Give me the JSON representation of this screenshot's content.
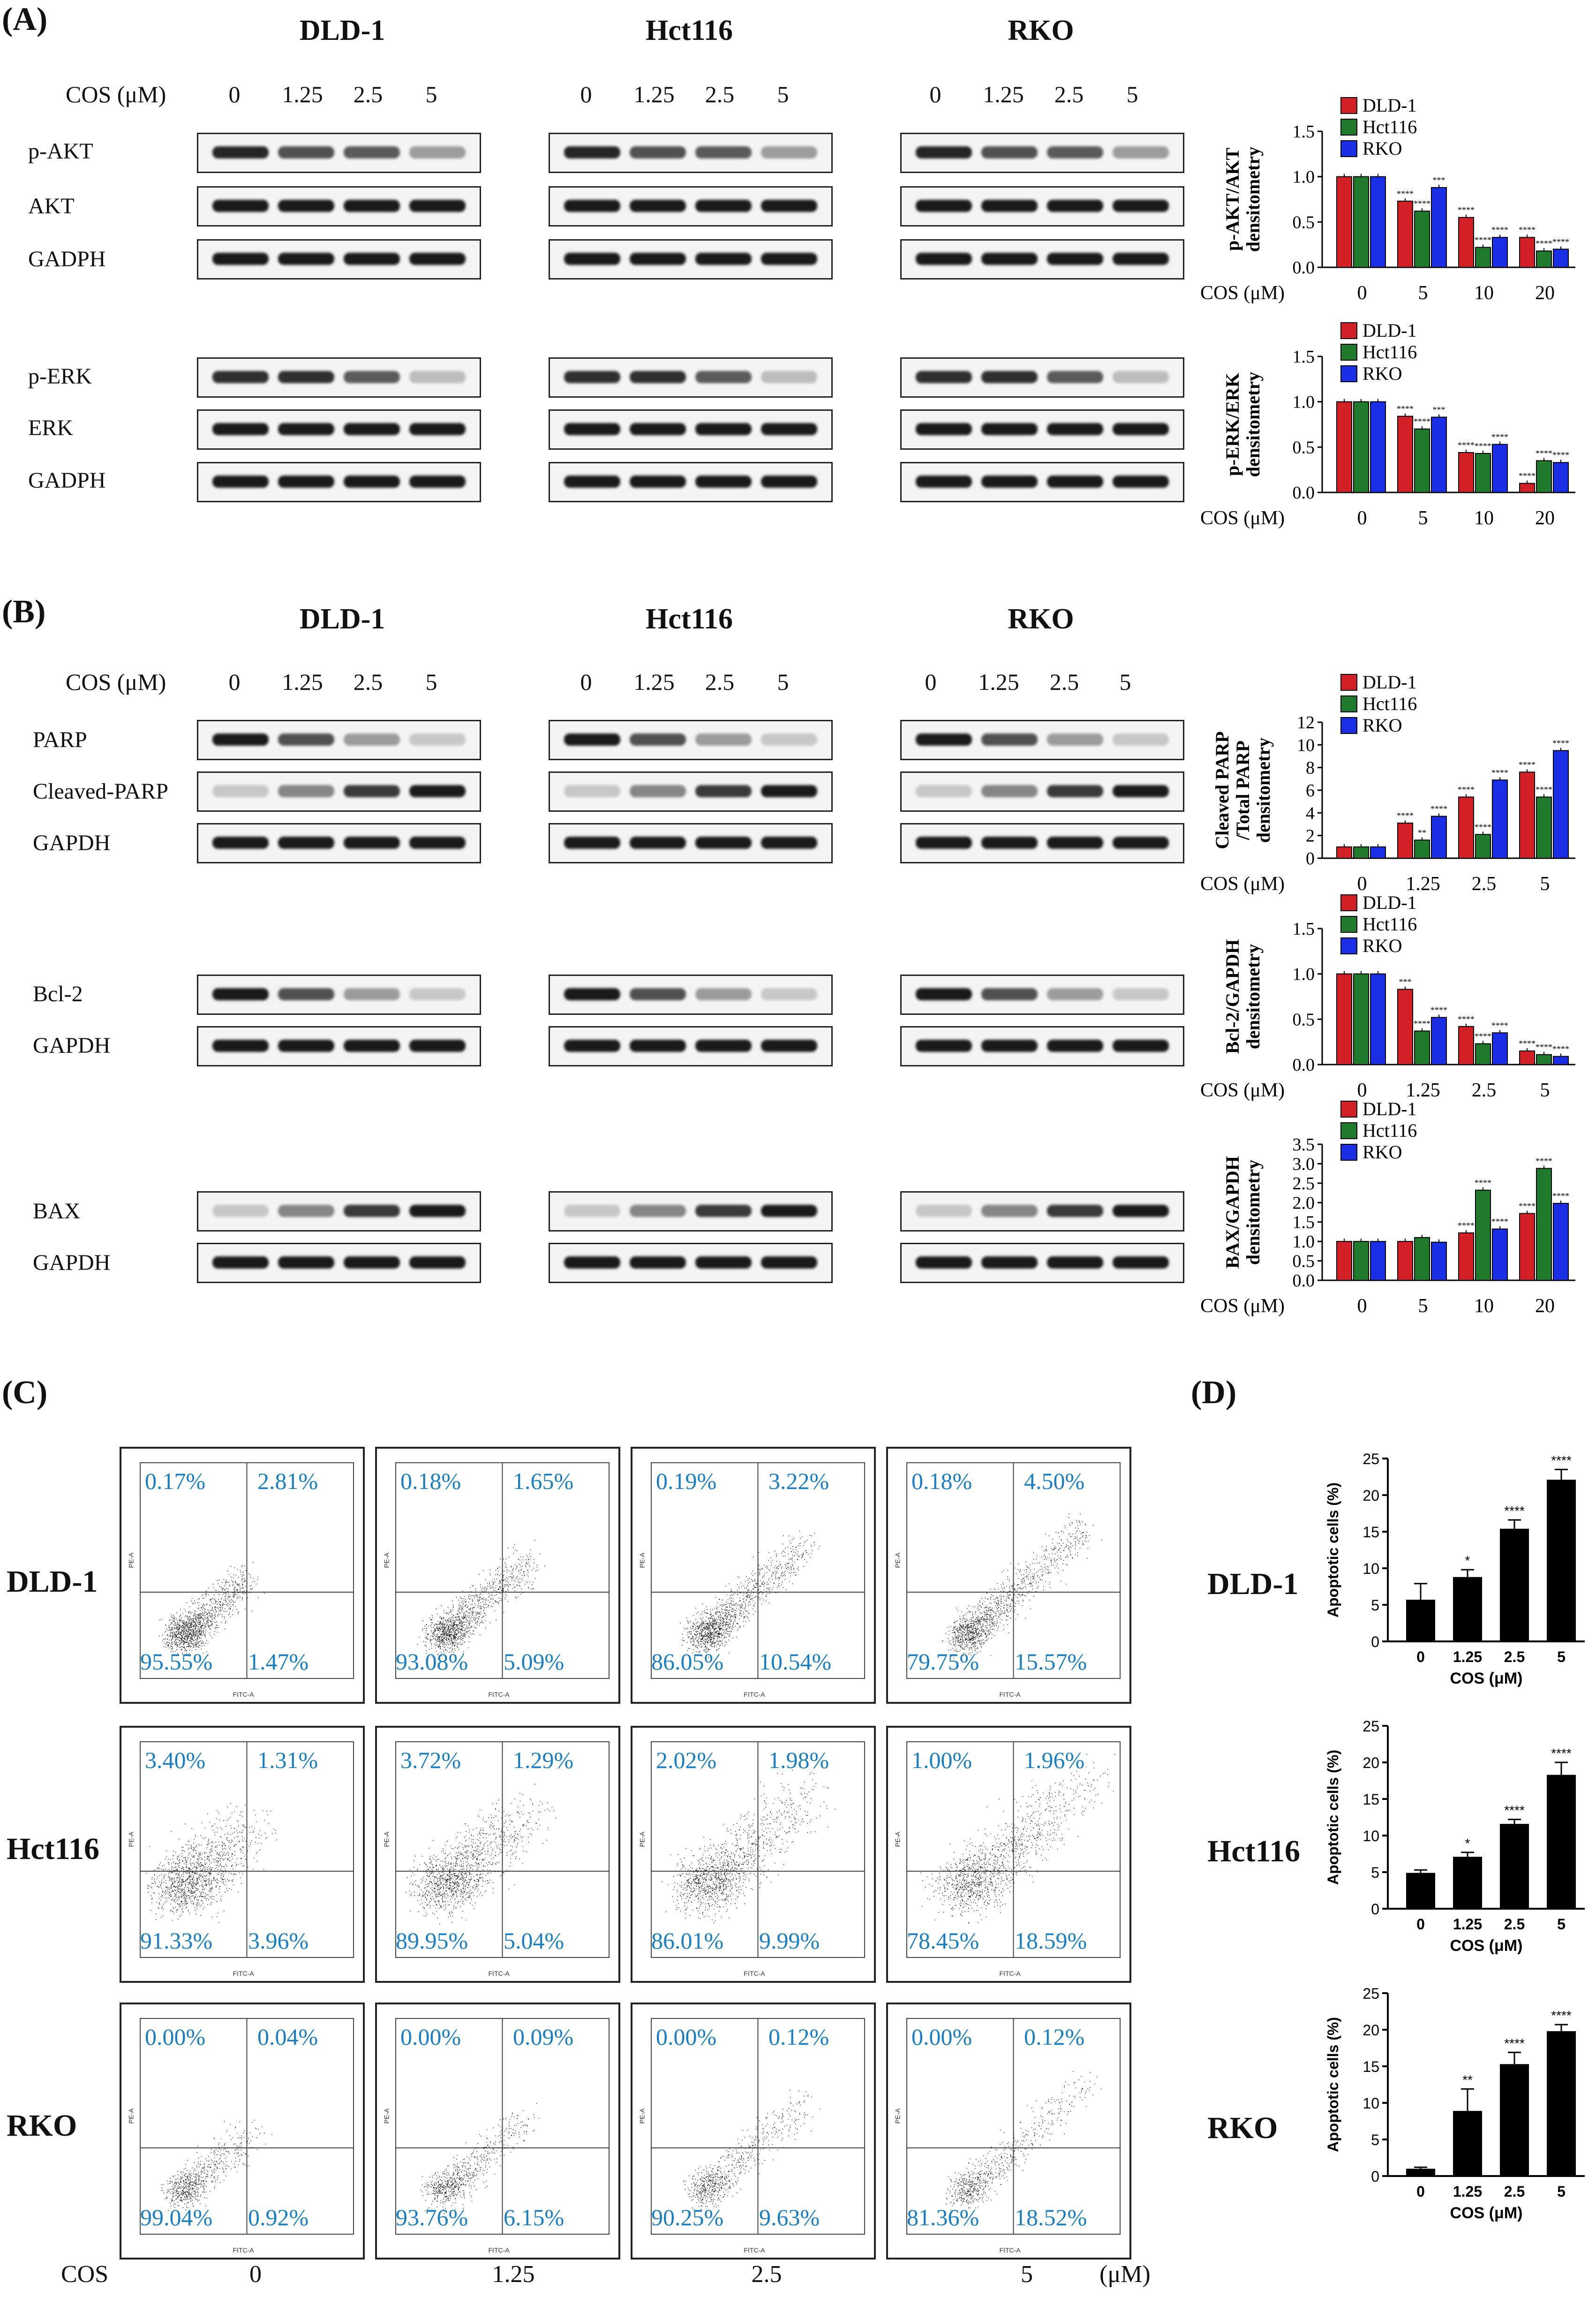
{
  "panels": {
    "A": "(A)",
    "B": "(B)",
    "C": "(C)",
    "D": "(D)"
  },
  "cell_lines": [
    "DLD-1",
    "Hct116",
    "RKO"
  ],
  "cos_label": "COS (μM)",
  "blot_concentrations": [
    "0",
    "1.25",
    "2.5",
    "5"
  ],
  "panel_a_rows": [
    "p-AKT",
    "AKT",
    "GADPH",
    "p-ERK",
    "ERK",
    "GADPH"
  ],
  "panel_b_rows": [
    "PARP",
    "Cleaved-PARP",
    "GAPDH",
    "Bcl-2",
    "GAPDH",
    "BAX",
    "GAPDH"
  ],
  "flow": {
    "cos_word": "COS",
    "unit": "(μM)",
    "columns": [
      "0",
      "1.25",
      "2.5",
      "5"
    ],
    "axis_x": "FITC-A",
    "axis_y": "PE-A",
    "rows": [
      {
        "cell": "DLD-1",
        "quadrants": [
          {
            "ul": "0.17%",
            "ur": "2.81%",
            "ll": "95.55%",
            "lr": "1.47%"
          },
          {
            "ul": "0.18%",
            "ur": "1.65%",
            "ll": "93.08%",
            "lr": "5.09%"
          },
          {
            "ul": "0.19%",
            "ur": "3.22%",
            "ll": "86.05%",
            "lr": "10.54%"
          },
          {
            "ul": "0.18%",
            "ur": "4.50%",
            "ll": "79.75%",
            "lr": "15.57%"
          }
        ]
      },
      {
        "cell": "Hct116",
        "quadrants": [
          {
            "ul": "3.40%",
            "ur": "1.31%",
            "ll": "91.33%",
            "lr": "3.96%"
          },
          {
            "ul": "3.72%",
            "ur": "1.29%",
            "ll": "89.95%",
            "lr": "5.04%"
          },
          {
            "ul": "2.02%",
            "ur": "1.98%",
            "ll": "86.01%",
            "lr": "9.99%"
          },
          {
            "ul": "1.00%",
            "ur": "1.96%",
            "ll": "78.45%",
            "lr": "18.59%"
          }
        ]
      },
      {
        "cell": "RKO",
        "quadrants": [
          {
            "ul": "0.00%",
            "ur": "0.04%",
            "ll": "99.04%",
            "lr": "0.92%"
          },
          {
            "ul": "0.00%",
            "ur": "0.09%",
            "ll": "93.76%",
            "lr": "6.15%"
          },
          {
            "ul": "0.00%",
            "ur": "0.12%",
            "ll": "90.25%",
            "lr": "9.63%"
          },
          {
            "ul": "0.00%",
            "ur": "0.12%",
            "ll": "81.36%",
            "lr": "18.52%"
          }
        ]
      }
    ]
  },
  "colors": {
    "dld1": "#d32027",
    "hct116": "#1f7a2c",
    "rko": "#1a2ee6",
    "quadrant_text": "#1a7fc2"
  },
  "chart_data": [
    {
      "id": "akt",
      "type": "bar",
      "ylabel": "p-AKT/AKT\ndensitometry",
      "xlabel": "COS (μM)",
      "categories": [
        "0",
        "5",
        "10",
        "20"
      ],
      "ylim": [
        0,
        1.5
      ],
      "yticks": [
        "0.0",
        "0.5",
        "1.0",
        "1.5"
      ],
      "legend": [
        "DLD-1",
        "Hct116",
        "RKO"
      ],
      "series": [
        {
          "name": "DLD-1",
          "values": [
            1.0,
            0.73,
            0.55,
            0.33
          ]
        },
        {
          "name": "Hct116",
          "values": [
            1.0,
            0.62,
            0.22,
            0.18
          ]
        },
        {
          "name": "RKO",
          "values": [
            1.0,
            0.88,
            0.33,
            0.2
          ]
        }
      ],
      "sig": [
        [
          "",
          "",
          ""
        ],
        [
          "****",
          "****",
          "***"
        ],
        [
          "****",
          "****",
          "****"
        ],
        [
          "****",
          "****",
          "****"
        ]
      ]
    },
    {
      "id": "erk",
      "type": "bar",
      "ylabel": "p-ERK/ERK\ndensitometry",
      "xlabel": "COS (μM)",
      "categories": [
        "0",
        "5",
        "10",
        "20"
      ],
      "ylim": [
        0,
        1.5
      ],
      "yticks": [
        "0.0",
        "0.5",
        "1.0",
        "1.5"
      ],
      "legend": [
        "DLD-1",
        "Hct116",
        "RKO"
      ],
      "series": [
        {
          "name": "DLD-1",
          "values": [
            1.0,
            0.84,
            0.44,
            0.1
          ]
        },
        {
          "name": "Hct116",
          "values": [
            1.0,
            0.7,
            0.43,
            0.35
          ]
        },
        {
          "name": "RKO",
          "values": [
            1.0,
            0.83,
            0.53,
            0.33
          ]
        }
      ],
      "sig": [
        [
          "",
          "",
          ""
        ],
        [
          "****",
          "****",
          "***"
        ],
        [
          "****",
          "****",
          "****"
        ],
        [
          "****",
          "****",
          "****"
        ]
      ]
    },
    {
      "id": "parp",
      "type": "bar",
      "ylabel": "Cleaved PARP\n/Total PARP\ndensitometry",
      "xlabel": "COS (μM)",
      "categories": [
        "0",
        "1.25",
        "2.5",
        "5"
      ],
      "ylim": [
        0,
        12
      ],
      "yticks": [
        "0",
        "2",
        "4",
        "6",
        "8",
        "10",
        "12"
      ],
      "legend": [
        "DLD-1",
        "Hct116",
        "RKO"
      ],
      "series": [
        {
          "name": "DLD-1",
          "values": [
            1.0,
            3.1,
            5.4,
            7.6
          ]
        },
        {
          "name": "Hct116",
          "values": [
            1.0,
            1.6,
            2.1,
            5.4
          ]
        },
        {
          "name": "RKO",
          "values": [
            1.0,
            3.7,
            6.9,
            9.5
          ]
        }
      ],
      "sig": [
        [
          "",
          "",
          ""
        ],
        [
          "****",
          "**",
          "****"
        ],
        [
          "****",
          "****",
          "****"
        ],
        [
          "****",
          "****",
          "****"
        ]
      ]
    },
    {
      "id": "bcl2",
      "type": "bar",
      "ylabel": "Bcl-2/GAPDH\ndensitometry",
      "xlabel": "COS (μM)",
      "categories": [
        "0",
        "1.25",
        "2.5",
        "5"
      ],
      "ylim": [
        0,
        1.5
      ],
      "yticks": [
        "0.0",
        "0.5",
        "1.0",
        "1.5"
      ],
      "legend": [
        "DLD-1",
        "Hct116",
        "RKO"
      ],
      "series": [
        {
          "name": "DLD-1",
          "values": [
            1.0,
            0.83,
            0.42,
            0.15
          ]
        },
        {
          "name": "Hct116",
          "values": [
            1.0,
            0.37,
            0.23,
            0.11
          ]
        },
        {
          "name": "RKO",
          "values": [
            1.0,
            0.52,
            0.35,
            0.09
          ]
        }
      ],
      "sig": [
        [
          "",
          "",
          ""
        ],
        [
          "***",
          "****",
          "****"
        ],
        [
          "****",
          "****",
          "****"
        ],
        [
          "****",
          "****",
          "****"
        ]
      ]
    },
    {
      "id": "bax",
      "type": "bar",
      "ylabel": "BAX/GAPDH\ndensitometry",
      "xlabel": "COS (μM)",
      "categories": [
        "0",
        "5",
        "10",
        "20"
      ],
      "ylim": [
        0,
        3.5
      ],
      "yticks": [
        "0.0",
        "0.5",
        "1.0",
        "1.5",
        "2.0",
        "2.5",
        "3.0",
        "3.5"
      ],
      "legend": [
        "DLD-1",
        "Hct116",
        "RKO"
      ],
      "series": [
        {
          "name": "DLD-1",
          "values": [
            1.0,
            1.0,
            1.22,
            1.72
          ]
        },
        {
          "name": "Hct116",
          "values": [
            1.0,
            1.1,
            2.32,
            2.88
          ]
        },
        {
          "name": "RKO",
          "values": [
            1.0,
            0.98,
            1.32,
            1.98
          ]
        }
      ],
      "sig": [
        [
          "",
          "",
          ""
        ],
        [
          "",
          "",
          ""
        ],
        [
          "****",
          "****",
          "****"
        ],
        [
          "****",
          "****",
          "****"
        ]
      ]
    },
    {
      "id": "apo_dld1",
      "type": "bar",
      "ylabel": "Apoptotic cells (%)",
      "xlabel": "COS (μM)",
      "categories": [
        "0",
        "1.25",
        "2.5",
        "5"
      ],
      "ylim": [
        0,
        25
      ],
      "yticks": [
        "0",
        "5",
        "10",
        "15",
        "20",
        "25"
      ],
      "values": [
        5.7,
        8.8,
        15.4,
        22.1
      ],
      "errors": [
        2.2,
        1.0,
        1.2,
        1.4
      ],
      "sig": [
        "",
        "*",
        "****",
        "****"
      ]
    },
    {
      "id": "apo_hct116",
      "type": "bar",
      "ylabel": "Apoptotic cells (%)",
      "xlabel": "COS (μM)",
      "categories": [
        "0",
        "1.25",
        "2.5",
        "5"
      ],
      "ylim": [
        0,
        25
      ],
      "yticks": [
        "0",
        "5",
        "10",
        "15",
        "20",
        "25"
      ],
      "values": [
        4.9,
        7.1,
        11.6,
        18.3
      ],
      "errors": [
        0.4,
        0.6,
        0.6,
        1.7
      ],
      "sig": [
        "",
        "*",
        "****",
        "****"
      ]
    },
    {
      "id": "apo_rko",
      "type": "bar",
      "ylabel": "Apoptotic cells (%)",
      "xlabel": "COS (μM)",
      "categories": [
        "0",
        "1.25",
        "2.5",
        "5"
      ],
      "ylim": [
        0,
        25
      ],
      "yticks": [
        "0",
        "5",
        "10",
        "15",
        "20",
        "25"
      ],
      "values": [
        1.0,
        8.9,
        15.3,
        19.8
      ],
      "errors": [
        0.2,
        3.0,
        1.6,
        0.9
      ],
      "sig": [
        "",
        "**",
        "****",
        "****"
      ]
    }
  ]
}
